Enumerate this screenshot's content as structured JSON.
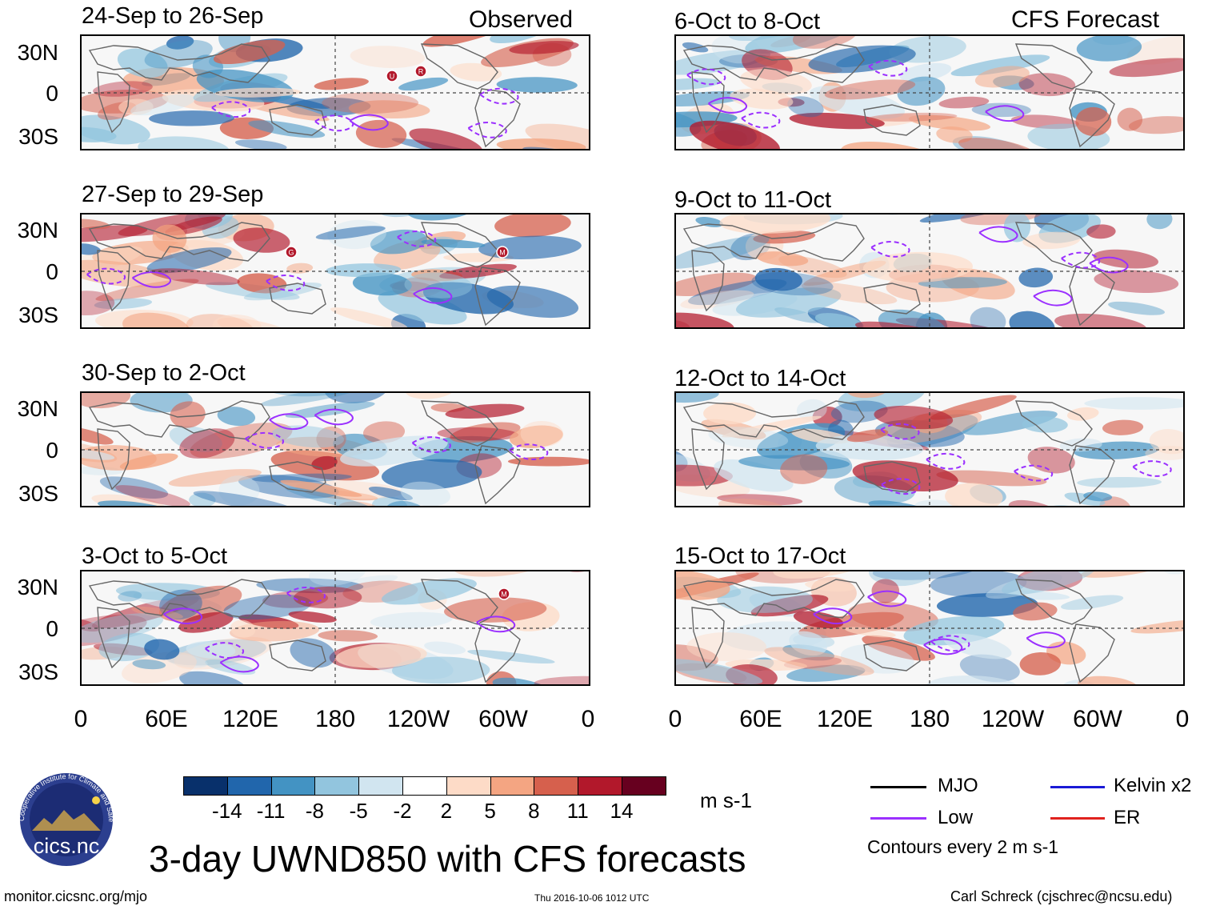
{
  "columns": {
    "left_label": "Observed",
    "right_label": "CFS Forecast"
  },
  "panels": {
    "left": [
      "24-Sep to 26-Sep",
      "27-Sep to 29-Sep",
      "30-Sep to 2-Oct",
      "3-Oct to 5-Oct"
    ],
    "right": [
      "6-Oct to 8-Oct",
      "9-Oct to 11-Oct",
      "12-Oct to 14-Oct",
      "15-Oct to 17-Oct"
    ]
  },
  "axes": {
    "lat_ticks": [
      "30N",
      "0",
      "30S"
    ],
    "lon_ticks": [
      "0",
      "60E",
      "120E",
      "180",
      "120W",
      "60W",
      "0"
    ]
  },
  "storm_markers": {
    "p1": [
      "U",
      "R"
    ],
    "p2": [
      "G",
      "M"
    ],
    "p4": [
      "M"
    ]
  },
  "colorbar": {
    "labels": [
      "-14",
      "-11",
      "-8",
      "-5",
      "-2",
      "2",
      "5",
      "8",
      "11",
      "14"
    ],
    "colors": [
      "#08306b",
      "#2166ac",
      "#4393c3",
      "#92c5de",
      "#d1e5f0",
      "#ffffff",
      "#fddbc7",
      "#f4a582",
      "#d6604d",
      "#b2182b",
      "#67001f"
    ],
    "unit": "m s-1"
  },
  "legend": {
    "items": [
      {
        "label": "MJO",
        "color": "#000000"
      },
      {
        "label": "Kelvin x2",
        "color": "#1a1ad6"
      },
      {
        "label": "Low",
        "color": "#9b30ff"
      },
      {
        "label": "ER",
        "color": "#e0221e"
      }
    ],
    "contour_note": "Contours every 2 m s-1"
  },
  "title": "3-day UWND850 with CFS forecasts",
  "logo_text": "cics.nc",
  "logo_ring_text": "Cooperative Institute for Climate and Satellites",
  "footer": {
    "left": "monitor.cicsnc.org/mjo",
    "center": "Thu 2016-10-06 1012 UTC",
    "right": "Carl Schreck (cjschrec@ncsu.edu)"
  }
}
